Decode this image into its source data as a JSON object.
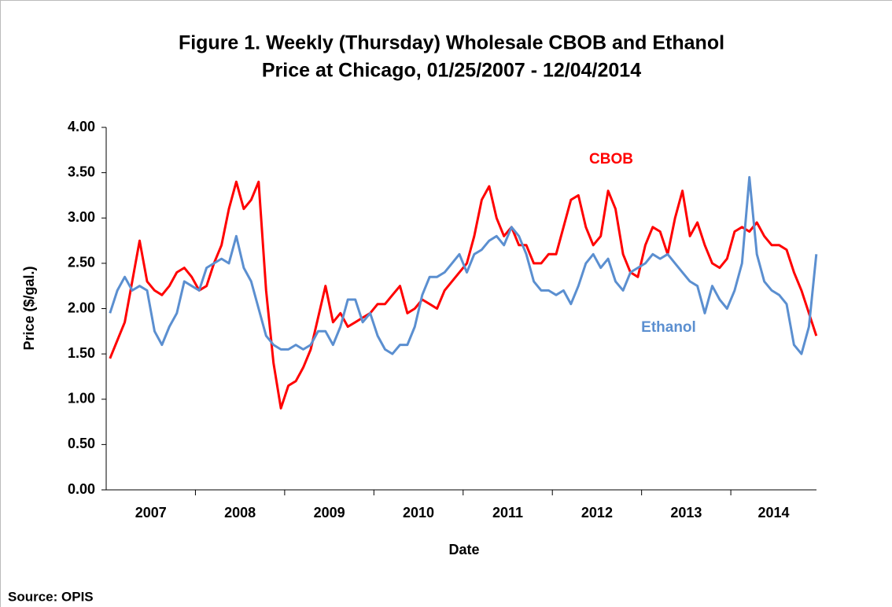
{
  "chart_data": {
    "type": "line",
    "title": [
      "Figure 1. Weekly (Thursday) Wholesale CBOB and Ethanol",
      "Price at Chicago, 01/25/2007 - 12/04/2014"
    ],
    "xlabel": "Date",
    "ylabel": "Price ($/gal.)",
    "source": "Source: OPIS",
    "categories": [
      "2007",
      "2008",
      "2009",
      "2010",
      "2011",
      "2012",
      "2013",
      "2014"
    ],
    "xlim": [
      2007,
      2014.96
    ],
    "xticks": [
      2008,
      2009,
      2010,
      2011,
      2012,
      2013,
      2014
    ],
    "ylim": [
      0,
      4
    ],
    "yticks": [
      {
        "value": 0,
        "label": "0.00"
      },
      {
        "value": 0.5,
        "label": "0.50"
      },
      {
        "value": 1,
        "label": "1.00"
      },
      {
        "value": 1.5,
        "label": "1.50"
      },
      {
        "value": 2,
        "label": "2.00"
      },
      {
        "value": 2.5,
        "label": "2.50"
      },
      {
        "value": 3,
        "label": "3.00"
      },
      {
        "value": 3.5,
        "label": "3.50"
      },
      {
        "value": 4,
        "label": "4.00"
      }
    ],
    "x": [
      2007.042,
      2007.125,
      2007.208,
      2007.292,
      2007.375,
      2007.458,
      2007.542,
      2007.625,
      2007.708,
      2007.792,
      2007.875,
      2007.958,
      2008.042,
      2008.125,
      2008.208,
      2008.292,
      2008.375,
      2008.458,
      2008.542,
      2008.625,
      2008.708,
      2008.792,
      2008.875,
      2008.958,
      2009.042,
      2009.125,
      2009.208,
      2009.292,
      2009.375,
      2009.458,
      2009.542,
      2009.625,
      2009.708,
      2009.792,
      2009.875,
      2009.958,
      2010.042,
      2010.125,
      2010.208,
      2010.292,
      2010.375,
      2010.458,
      2010.542,
      2010.625,
      2010.708,
      2010.792,
      2010.875,
      2010.958,
      2011.042,
      2011.125,
      2011.208,
      2011.292,
      2011.375,
      2011.458,
      2011.542,
      2011.625,
      2011.708,
      2011.792,
      2011.875,
      2011.958,
      2012.042,
      2012.125,
      2012.208,
      2012.292,
      2012.375,
      2012.458,
      2012.542,
      2012.625,
      2012.708,
      2012.792,
      2012.875,
      2012.958,
      2013.042,
      2013.125,
      2013.208,
      2013.292,
      2013.375,
      2013.458,
      2013.542,
      2013.625,
      2013.708,
      2013.792,
      2013.875,
      2013.958,
      2014.042,
      2014.125,
      2014.208,
      2014.292,
      2014.375,
      2014.458,
      2014.542,
      2014.625,
      2014.708,
      2014.792,
      2014.875,
      2014.958
    ],
    "series": [
      {
        "name": "CBOB",
        "color": "#ff0000",
        "values": [
          1.45,
          1.65,
          1.85,
          2.3,
          2.75,
          2.3,
          2.2,
          2.15,
          2.25,
          2.4,
          2.45,
          2.35,
          2.2,
          2.25,
          2.5,
          2.7,
          3.1,
          3.4,
          3.1,
          3.2,
          3.4,
          2.2,
          1.4,
          0.9,
          1.15,
          1.2,
          1.35,
          1.55,
          1.9,
          2.25,
          1.85,
          1.95,
          1.8,
          1.85,
          1.9,
          1.95,
          2.05,
          2.05,
          2.15,
          2.25,
          1.95,
          2.0,
          2.1,
          2.05,
          2.0,
          2.2,
          2.3,
          2.4,
          2.5,
          2.8,
          3.2,
          3.35,
          3.0,
          2.8,
          2.9,
          2.7,
          2.7,
          2.5,
          2.5,
          2.6,
          2.6,
          2.9,
          3.2,
          3.25,
          2.9,
          2.7,
          2.8,
          3.3,
          3.1,
          2.6,
          2.4,
          2.35,
          2.7,
          2.9,
          2.85,
          2.6,
          3.0,
          3.3,
          2.8,
          2.95,
          2.7,
          2.5,
          2.45,
          2.55,
          2.85,
          2.9,
          2.85,
          2.95,
          2.8,
          2.7,
          2.7,
          2.65,
          2.4,
          2.2,
          1.95,
          1.7
        ]
      },
      {
        "name": "Ethanol",
        "color": "#5b8fd0",
        "values": [
          1.95,
          2.2,
          2.35,
          2.2,
          2.25,
          2.2,
          1.75,
          1.6,
          1.8,
          1.95,
          2.3,
          2.25,
          2.2,
          2.45,
          2.5,
          2.55,
          2.5,
          2.8,
          2.45,
          2.3,
          2.0,
          1.7,
          1.6,
          1.55,
          1.55,
          1.6,
          1.55,
          1.6,
          1.75,
          1.75,
          1.6,
          1.8,
          2.1,
          2.1,
          1.85,
          1.95,
          1.7,
          1.55,
          1.5,
          1.6,
          1.6,
          1.8,
          2.15,
          2.35,
          2.35,
          2.4,
          2.5,
          2.6,
          2.4,
          2.6,
          2.65,
          2.75,
          2.8,
          2.7,
          2.9,
          2.8,
          2.6,
          2.3,
          2.2,
          2.2,
          2.15,
          2.2,
          2.05,
          2.25,
          2.5,
          2.6,
          2.45,
          2.55,
          2.3,
          2.2,
          2.4,
          2.45,
          2.5,
          2.6,
          2.55,
          2.6,
          2.5,
          2.4,
          2.3,
          2.25,
          1.95,
          2.25,
          2.1,
          2.0,
          2.2,
          2.5,
          3.45,
          2.6,
          2.3,
          2.2,
          2.15,
          2.05,
          1.6,
          1.5,
          1.8,
          2.6
        ]
      }
    ]
  }
}
